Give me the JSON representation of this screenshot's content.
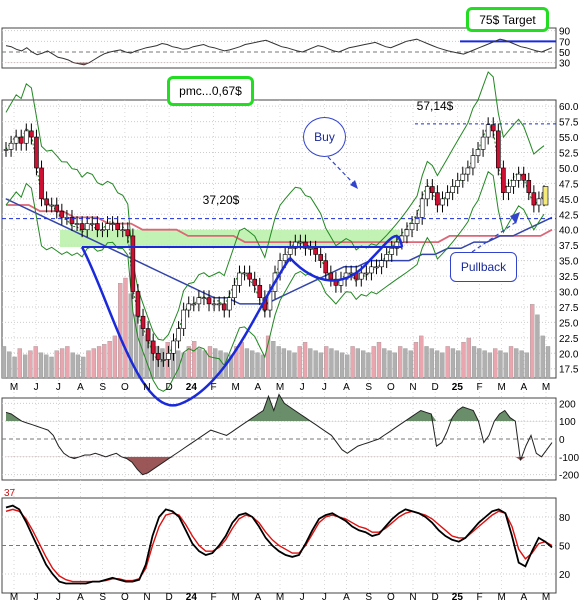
{
  "annotations": {
    "target_label": "75$ Target",
    "pmc_label": "pmc...0,67$",
    "buy_label": "Buy",
    "pullback_label": "Pullback",
    "price_high_label": "57,14$",
    "price_neck_label": "37,20$"
  },
  "colors": {
    "up_candle": "#ffffff",
    "down_candle": "#cc1133",
    "grid": "#cccccc",
    "bollinger": "#228822",
    "ma_red": "#dd6677",
    "ma_blue": "#3344aa",
    "highlight_band": "#b8f0a8",
    "pattern_line": "#1a2adb",
    "volume_up": "#b0b0b0",
    "volume_down": "#e9a6ae"
  },
  "chart_data": [
    {
      "type": "line",
      "panel": "rsi_top",
      "y_ticks": [
        "90",
        "70",
        "50",
        "30"
      ],
      "ylim": [
        20,
        95
      ],
      "values": [
        62,
        60,
        55,
        52,
        58,
        50,
        45,
        48,
        52,
        46,
        40,
        38,
        35,
        30,
        28,
        26,
        30,
        36,
        42,
        47,
        50,
        52,
        54,
        50,
        48,
        52,
        55,
        58,
        60,
        62,
        66,
        64,
        60,
        58,
        55,
        56,
        60,
        62,
        64,
        60,
        58,
        55,
        52,
        54,
        57,
        60,
        64,
        66,
        68,
        70,
        72,
        68,
        64,
        60,
        58,
        55,
        52,
        50,
        54,
        58,
        62,
        60,
        56,
        52,
        50,
        54,
        58,
        60,
        62,
        64,
        66,
        68,
        64,
        60,
        58,
        62,
        66,
        70,
        72,
        74,
        70,
        66,
        62,
        58,
        55,
        52,
        50,
        48,
        46,
        50,
        54,
        58,
        62,
        66,
        70,
        74,
        72,
        68,
        64,
        60,
        58,
        55,
        52,
        50,
        54,
        58
      ]
    },
    {
      "type": "candlestick",
      "panel": "price",
      "x_tick_labels": [
        "M",
        "J",
        "J",
        "A",
        "S",
        "O",
        "N",
        "D",
        "24",
        "F",
        "M",
        "A",
        "M",
        "J",
        "J",
        "A",
        "S",
        "O",
        "N",
        "D",
        "25",
        "F",
        "M",
        "A",
        "M"
      ],
      "y_ticks": [
        "60.0",
        "57.5",
        "55.0",
        "52.5",
        "50.0",
        "47.5",
        "45.0",
        "42.5",
        "40.0",
        "37.5",
        "35.0",
        "32.5",
        "30.0",
        "27.5",
        "25.0",
        "22.5",
        "20.0",
        "17.5"
      ],
      "ylim": [
        16,
        61
      ],
      "closes": [
        53,
        54,
        55,
        54,
        56,
        55,
        50,
        45,
        44,
        44,
        43,
        42,
        42,
        41,
        41,
        40,
        41,
        41,
        40,
        40,
        41,
        41,
        40,
        40,
        39,
        30,
        26,
        24,
        22,
        20,
        19,
        19,
        20,
        22,
        24,
        27,
        28,
        28,
        29,
        29,
        28,
        28,
        28,
        27,
        29,
        31,
        33,
        33,
        32,
        31,
        29,
        27,
        30,
        33,
        35,
        36,
        37,
        38,
        38,
        37,
        37,
        36,
        35,
        33,
        32,
        31,
        32,
        33,
        33,
        32,
        33,
        33,
        34,
        34,
        35,
        36,
        37,
        38,
        39,
        40,
        41,
        42,
        45,
        47,
        46,
        44,
        45,
        46,
        47,
        48,
        49,
        50,
        52,
        53,
        55,
        57,
        56,
        50,
        46,
        47,
        48,
        49,
        48,
        46,
        44,
        45,
        46
      ],
      "moving_average_red": [
        44,
        44,
        44,
        43,
        43,
        43,
        42,
        42,
        42,
        41,
        41,
        41,
        40,
        40,
        40,
        40,
        39,
        39,
        39,
        39,
        39,
        38,
        38,
        38,
        38,
        38,
        38,
        38,
        38,
        38,
        38,
        38,
        38,
        38,
        38,
        38,
        38,
        38,
        38,
        39,
        39,
        39,
        39,
        39,
        39,
        39,
        39,
        39,
        40
      ],
      "moving_average_blue": [
        45,
        44,
        43,
        42,
        41,
        40,
        39,
        38,
        37,
        36,
        35,
        34,
        33,
        32,
        31,
        30,
        29,
        29,
        28,
        28,
        28,
        29,
        30,
        31,
        32,
        33,
        34,
        34,
        35,
        35,
        35,
        35,
        36,
        36,
        37,
        37,
        38,
        38,
        39,
        39,
        40,
        41,
        42
      ]
    },
    {
      "type": "bar",
      "panel": "volume",
      "values": [
        30,
        25,
        20,
        28,
        22,
        26,
        30,
        24,
        22,
        20,
        26,
        28,
        30,
        24,
        22,
        20,
        26,
        28,
        30,
        32,
        35,
        40,
        90,
        95,
        80,
        60,
        50,
        40,
        35,
        30,
        28,
        34,
        30,
        26,
        24,
        30,
        35,
        28,
        26,
        30,
        28,
        26,
        24,
        22,
        30,
        34,
        28,
        26,
        24,
        22,
        40,
        35,
        30,
        28,
        26,
        24,
        30,
        34,
        28,
        26,
        24,
        30,
        28,
        26,
        24,
        22,
        30,
        28,
        26,
        24,
        30,
        34,
        28,
        26,
        24,
        30,
        28,
        26,
        34,
        40,
        30,
        28,
        26,
        24,
        30,
        28,
        26,
        34,
        38,
        30,
        28,
        26,
        24,
        28,
        26,
        24,
        30,
        28,
        26,
        24,
        70,
        60,
        40,
        30
      ]
    },
    {
      "type": "area",
      "panel": "cci",
      "y_ticks": [
        "200",
        "100",
        "0",
        "-100",
        "-200"
      ],
      "ylim": [
        -230,
        230
      ],
      "values": [
        150,
        140,
        120,
        100,
        90,
        80,
        70,
        60,
        50,
        20,
        -40,
        -80,
        -100,
        -110,
        -100,
        -90,
        -90,
        -80,
        -90,
        -100,
        -90,
        -80,
        -100,
        -110,
        -130,
        -170,
        -200,
        -190,
        -170,
        -150,
        -130,
        -110,
        -90,
        -70,
        -50,
        -30,
        -10,
        10,
        30,
        50,
        40,
        30,
        20,
        40,
        60,
        80,
        100,
        120,
        140,
        160,
        240,
        160,
        250,
        200,
        180,
        160,
        140,
        120,
        100,
        80,
        60,
        40,
        20,
        -20,
        -60,
        -80,
        -60,
        -40,
        -30,
        -20,
        -10,
        0,
        20,
        40,
        60,
        80,
        100,
        120,
        140,
        160,
        150,
        140,
        -40,
        -20,
        40,
        120,
        160,
        180,
        170,
        160,
        100,
        -20,
        20,
        100,
        140,
        160,
        120,
        100,
        -120,
        -40,
        20,
        -80,
        -100,
        -60,
        -20
      ]
    },
    {
      "type": "line",
      "panel": "stochastic",
      "y_ticks": [
        "80",
        "50",
        "20"
      ],
      "ylim": [
        0,
        100
      ],
      "top_left_value": "37",
      "series": [
        {
          "values": [
            90,
            92,
            88,
            75,
            60,
            45,
            30,
            20,
            12,
            10,
            10,
            10,
            10,
            12,
            12,
            14,
            16,
            14,
            12,
            12,
            14,
            30,
            60,
            80,
            88,
            86,
            80,
            66,
            52,
            44,
            40,
            42,
            50,
            60,
            74,
            82,
            84,
            80,
            70,
            58,
            50,
            44,
            40,
            38,
            40,
            52,
            66,
            78,
            82,
            84,
            80,
            76,
            70,
            66,
            64,
            60,
            62,
            70,
            78,
            84,
            88,
            86,
            84,
            80,
            74,
            66,
            60,
            56,
            54,
            58,
            66,
            74,
            80,
            86,
            88,
            84,
            60,
            32,
            28,
            44,
            58,
            54,
            48
          ]
        },
        {
          "values": [
            86,
            88,
            86,
            78,
            66,
            52,
            38,
            26,
            18,
            14,
            12,
            12,
            12,
            12,
            12,
            13,
            15,
            15,
            13,
            13,
            15,
            26,
            50,
            70,
            82,
            84,
            82,
            72,
            60,
            50,
            44,
            44,
            48,
            56,
            68,
            78,
            82,
            80,
            74,
            64,
            56,
            50,
            46,
            42,
            42,
            50,
            62,
            74,
            80,
            82,
            80,
            78,
            74,
            70,
            68,
            64,
            64,
            68,
            74,
            80,
            84,
            86,
            84,
            82,
            78,
            72,
            66,
            60,
            58,
            58,
            64,
            70,
            76,
            82,
            86,
            84,
            70,
            46,
            36,
            42,
            52,
            54,
            50
          ]
        }
      ]
    }
  ]
}
